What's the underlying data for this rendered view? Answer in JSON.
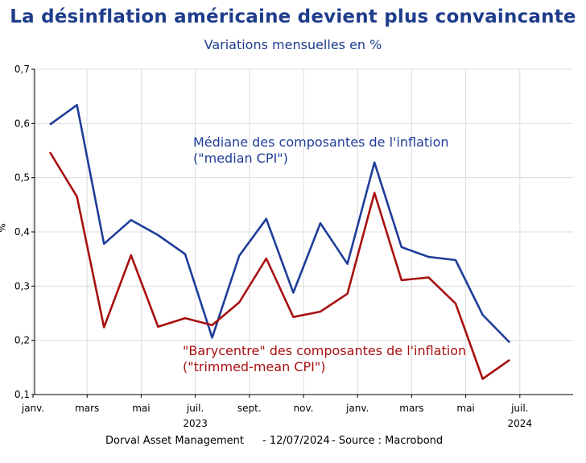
{
  "title": "La désinflation américaine devient plus convaincante",
  "subtitle": "Variations mensuelles en %",
  "ylabel": "%",
  "footer": {
    "source_owner": "Dorval Asset Management",
    "date": "- 12/07/2024",
    "source": "-   Source : Macrobond"
  },
  "colors": {
    "median": "#1f3d99",
    "trimmed": "#a81010",
    "title": "#1f3d8c"
  },
  "chart_data": {
    "type": "line",
    "x": [
      "2023-01",
      "2023-02",
      "2023-03",
      "2023-04",
      "2023-05",
      "2023-06",
      "2023-07",
      "2023-08",
      "2023-09",
      "2023-10",
      "2023-11",
      "2023-12",
      "2024-01",
      "2024-02",
      "2024-03",
      "2024-04",
      "2024-05",
      "2024-06"
    ],
    "x_tick_labels": [
      "janv.",
      "mars",
      "mai",
      "juil.",
      "sept.",
      "nov.",
      "janv.",
      "mars",
      "mai",
      "juil."
    ],
    "x_year_labels": [
      "2023",
      "2024"
    ],
    "ylim": [
      0.1,
      0.7
    ],
    "yticks": [
      "0,1",
      "0,2",
      "0,3",
      "0,4",
      "0,5",
      "0,6",
      "0,7"
    ],
    "grid": true,
    "series": [
      {
        "name": "Médiane des composantes de l'inflation",
        "name_line2": "(\"median CPI\")",
        "values": [
          0.598,
          0.634,
          0.378,
          0.422,
          0.394,
          0.359,
          0.205,
          0.356,
          0.424,
          0.288,
          0.416,
          0.341,
          0.528,
          0.372,
          0.354,
          0.348,
          0.247,
          0.196
        ]
      },
      {
        "name": "\"Barycentre\" des composantes de l'inflation",
        "name_line2": "(\"trimmed-mean CPI\")",
        "values": [
          0.547,
          0.465,
          0.224,
          0.357,
          0.225,
          0.241,
          0.228,
          0.27,
          0.351,
          0.243,
          0.253,
          0.286,
          0.472,
          0.311,
          0.316,
          0.268,
          0.129,
          0.164
        ]
      }
    ]
  }
}
